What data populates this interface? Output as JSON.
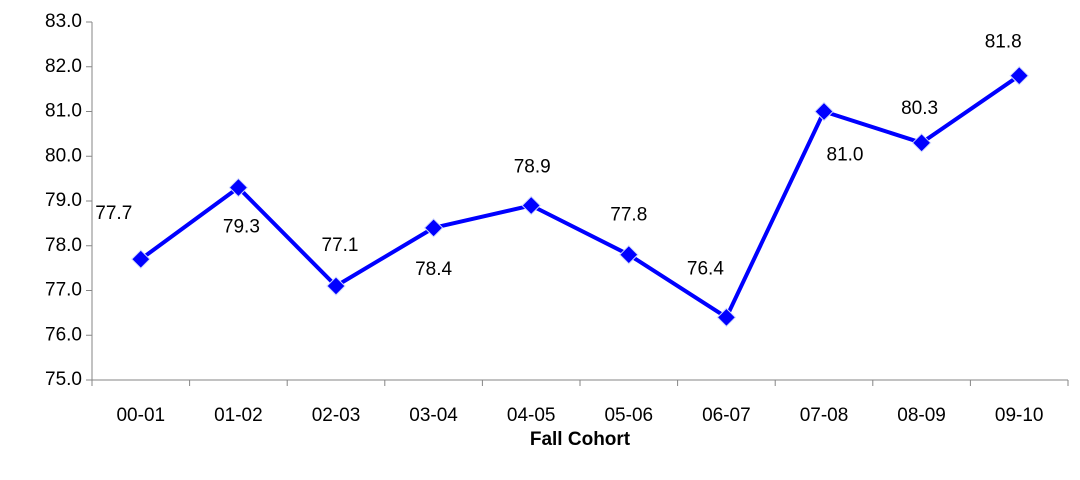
{
  "chart_data": {
    "type": "line",
    "x_label": "Fall Cohort",
    "categories": [
      "00-01",
      "01-02",
      "02-03",
      "03-04",
      "04-05",
      "05-06",
      "06-07",
      "07-08",
      "08-09",
      "09-10"
    ],
    "series": [
      {
        "color": "#0000ff",
        "values": [
          77.7,
          79.3,
          77.1,
          78.4,
          78.9,
          77.8,
          76.4,
          81.0,
          80.3,
          81.8
        ],
        "value_labels": [
          "77.7",
          "79.3",
          "77.1",
          "78.4",
          "78.9",
          "77.8",
          "76.4",
          "81.0",
          "80.3",
          "81.8"
        ]
      }
    ],
    "ylim": [
      75,
      83
    ],
    "yticks": [
      {
        "value": 75,
        "label": "75.0"
      },
      {
        "value": 76,
        "label": "76.0"
      },
      {
        "value": 77,
        "label": "77.0"
      },
      {
        "value": 78,
        "label": "78.0"
      },
      {
        "value": 79,
        "label": "79.0"
      },
      {
        "value": 80,
        "label": "80.0"
      },
      {
        "value": 81,
        "label": "81.0"
      },
      {
        "value": 82,
        "label": "82.0"
      },
      {
        "value": 83,
        "label": "83.0"
      }
    ]
  }
}
